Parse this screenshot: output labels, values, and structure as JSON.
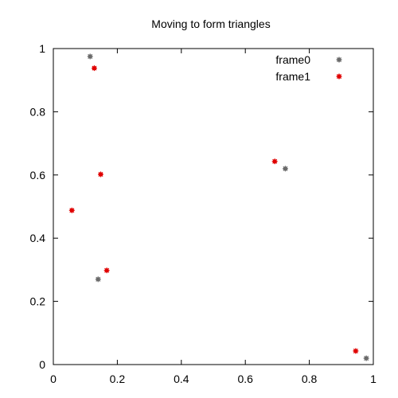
{
  "chart_data": {
    "type": "scatter",
    "title": "Moving to form triangles",
    "xlabel": "",
    "ylabel": "",
    "xlim": [
      0,
      1
    ],
    "ylim": [
      0,
      1
    ],
    "x_ticks": [
      "0",
      "0.2",
      "0.4",
      "0.6",
      "0.8",
      "1"
    ],
    "y_ticks": [
      "0",
      "0.2",
      "0.4",
      "0.6",
      "0.8",
      "1"
    ],
    "grid": false,
    "legend_position": "top-right",
    "series": [
      {
        "name": "frame0",
        "color": "#6b6b6b",
        "points": [
          [
            0.115,
            0.975
          ],
          [
            0.725,
            0.62
          ],
          [
            0.14,
            0.27
          ],
          [
            0.978,
            0.02
          ]
        ]
      },
      {
        "name": "frame1",
        "color": "#e00000",
        "points": [
          [
            0.128,
            0.938
          ],
          [
            0.148,
            0.602
          ],
          [
            0.058,
            0.488
          ],
          [
            0.167,
            0.298
          ],
          [
            0.692,
            0.643
          ],
          [
            0.945,
            0.043
          ]
        ]
      }
    ]
  }
}
